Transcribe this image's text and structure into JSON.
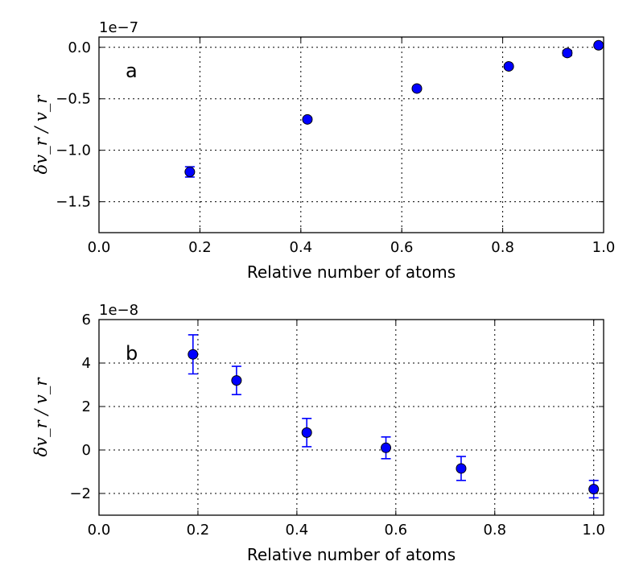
{
  "chart_data": [
    {
      "type": "scatter",
      "panel": "a",
      "xlabel": "Relative number of atoms",
      "ylabel": "δv_r / v_r",
      "exponent": "1e−7",
      "xlim": [
        0.0,
        1.0
      ],
      "ylim": [
        -1.8,
        0.1
      ],
      "xticks": [
        0.0,
        0.2,
        0.4,
        0.6,
        0.8,
        1.0
      ],
      "xtick_labels": [
        "0.0",
        "0.2",
        "0.4",
        "0.6",
        "0.8",
        "1.0"
      ],
      "yticks": [
        0.0,
        -0.5,
        -1.0,
        -1.5
      ],
      "ytick_labels": [
        "0.0",
        "−0.5",
        "−1.0",
        "−1.5"
      ],
      "grid": true,
      "color": "#0000ff",
      "points": [
        {
          "x": 0.18,
          "y": -1.21,
          "err": 0.05
        },
        {
          "x": 0.413,
          "y": -0.7,
          "err": 0.0
        },
        {
          "x": 0.63,
          "y": -0.4,
          "err": 0.0
        },
        {
          "x": 0.812,
          "y": -0.185,
          "err": 0.0
        },
        {
          "x": 0.928,
          "y": -0.055,
          "err": 0.025
        },
        {
          "x": 0.99,
          "y": 0.02,
          "err": 0.0
        }
      ]
    },
    {
      "type": "scatter",
      "panel": "b",
      "xlabel": "Relative number of atoms",
      "ylabel": "δv_r / v_r",
      "exponent": "1e−8",
      "xlim": [
        0.0,
        1.02
      ],
      "ylim": [
        -3,
        6
      ],
      "xticks": [
        0.0,
        0.2,
        0.4,
        0.6,
        0.8,
        1.0
      ],
      "xtick_labels": [
        "0.0",
        "0.2",
        "0.4",
        "0.6",
        "0.8",
        "1.0"
      ],
      "yticks": [
        6,
        4,
        2,
        0,
        -2
      ],
      "ytick_labels": [
        "6",
        "4",
        "2",
        "0",
        "−2"
      ],
      "grid": true,
      "color": "#0000ff",
      "points": [
        {
          "x": 0.19,
          "y": 4.4,
          "err": 0.9
        },
        {
          "x": 0.278,
          "y": 3.2,
          "err": 0.65
        },
        {
          "x": 0.42,
          "y": 0.8,
          "err": 0.65
        },
        {
          "x": 0.58,
          "y": 0.1,
          "err": 0.5
        },
        {
          "x": 0.732,
          "y": -0.85,
          "err": 0.55
        },
        {
          "x": 1.0,
          "y": -1.8,
          "err": 0.4
        }
      ]
    }
  ]
}
